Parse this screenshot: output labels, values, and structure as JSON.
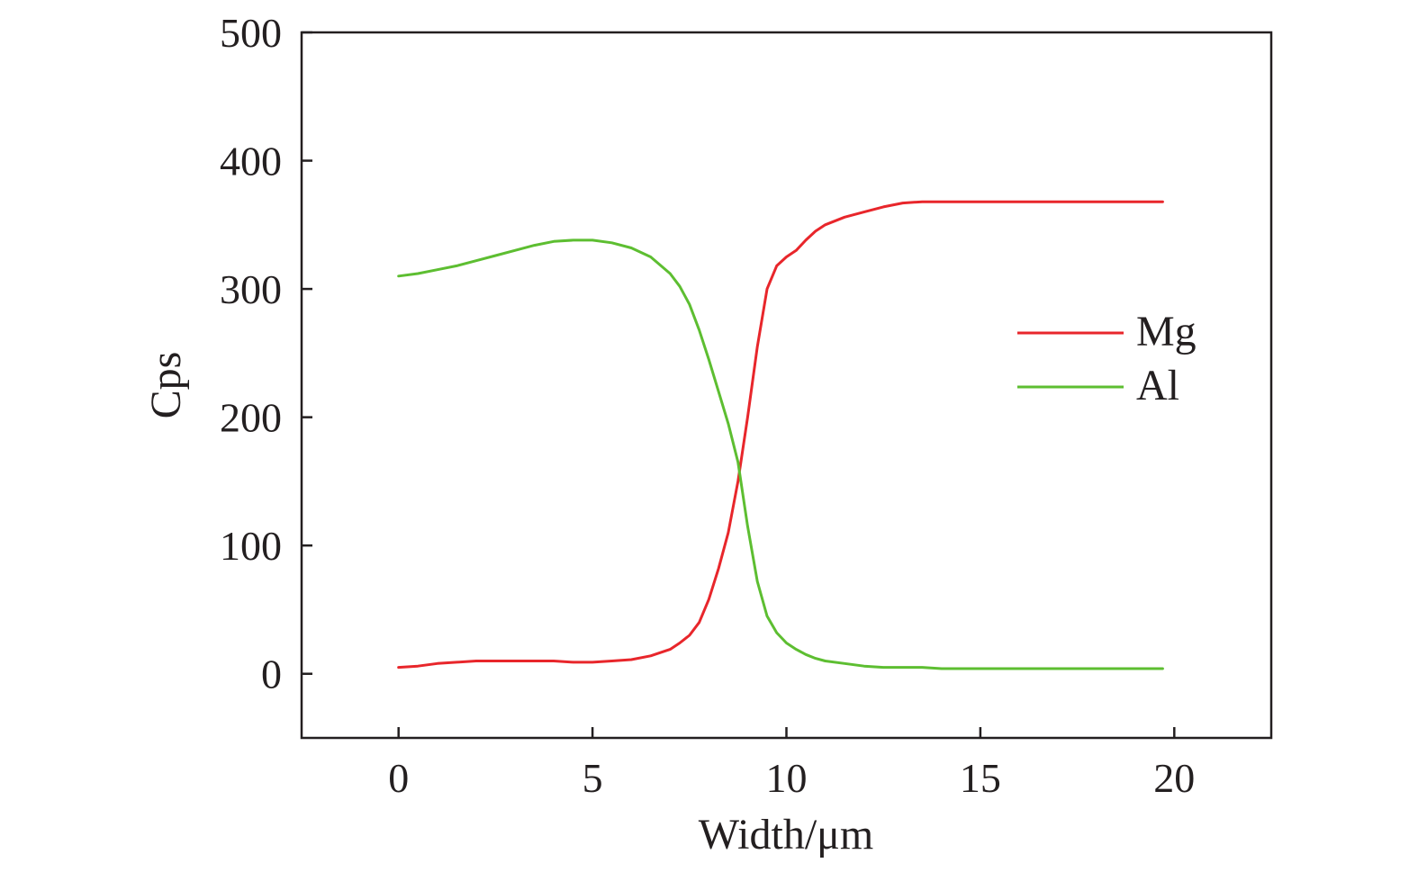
{
  "chart_data": {
    "type": "line",
    "title": "",
    "xlabel": "Width/μm",
    "ylabel": "Cps",
    "xlim": [
      -2.5,
      22.5
    ],
    "ylim": [
      -50,
      500
    ],
    "xticks": [
      0,
      5,
      10,
      15,
      20
    ],
    "yticks": [
      0,
      100,
      200,
      300,
      400,
      500
    ],
    "grid": false,
    "legend_position": "right",
    "series": [
      {
        "name": "Mg",
        "color": "#e8262b",
        "x": [
          0,
          0.5,
          1,
          1.5,
          2,
          2.5,
          3,
          3.5,
          4,
          4.5,
          5,
          5.5,
          6,
          6.5,
          7,
          7.25,
          7.5,
          7.75,
          8,
          8.25,
          8.5,
          8.75,
          9,
          9.25,
          9.5,
          9.75,
          10,
          10.25,
          10.5,
          10.75,
          11,
          11.5,
          12,
          12.5,
          13,
          13.5,
          14,
          14.5,
          15,
          15.5,
          16,
          16.5,
          17,
          17.5,
          18,
          18.5,
          19,
          19.5,
          19.7
        ],
        "y": [
          5,
          6,
          8,
          9,
          10,
          10,
          10,
          10,
          10,
          9,
          9,
          10,
          11,
          14,
          19,
          24,
          30,
          40,
          58,
          82,
          110,
          150,
          200,
          255,
          300,
          318,
          325,
          330,
          338,
          345,
          350,
          356,
          360,
          364,
          367,
          368,
          368,
          368,
          368,
          368,
          368,
          368,
          368,
          368,
          368,
          368,
          368,
          368,
          368
        ]
      },
      {
        "name": "Al",
        "color": "#5dbe31",
        "x": [
          0,
          0.5,
          1,
          1.5,
          2,
          2.5,
          3,
          3.5,
          4,
          4.5,
          5,
          5.5,
          6,
          6.5,
          7,
          7.25,
          7.5,
          7.75,
          8,
          8.25,
          8.5,
          8.75,
          9,
          9.25,
          9.5,
          9.75,
          10,
          10.25,
          10.5,
          10.75,
          11,
          11.5,
          12,
          12.5,
          13,
          13.5,
          14,
          14.5,
          15,
          15.5,
          16,
          16.5,
          17,
          17.5,
          18,
          18.5,
          19,
          19.5,
          19.7
        ],
        "y": [
          310,
          312,
          315,
          318,
          322,
          326,
          330,
          334,
          337,
          338,
          338,
          336,
          332,
          325,
          312,
          302,
          288,
          268,
          245,
          220,
          195,
          165,
          115,
          72,
          45,
          32,
          24,
          19,
          15,
          12,
          10,
          8,
          6,
          5,
          5,
          5,
          4,
          4,
          4,
          4,
          4,
          4,
          4,
          4,
          4,
          4,
          4,
          4,
          4
        ]
      }
    ]
  }
}
